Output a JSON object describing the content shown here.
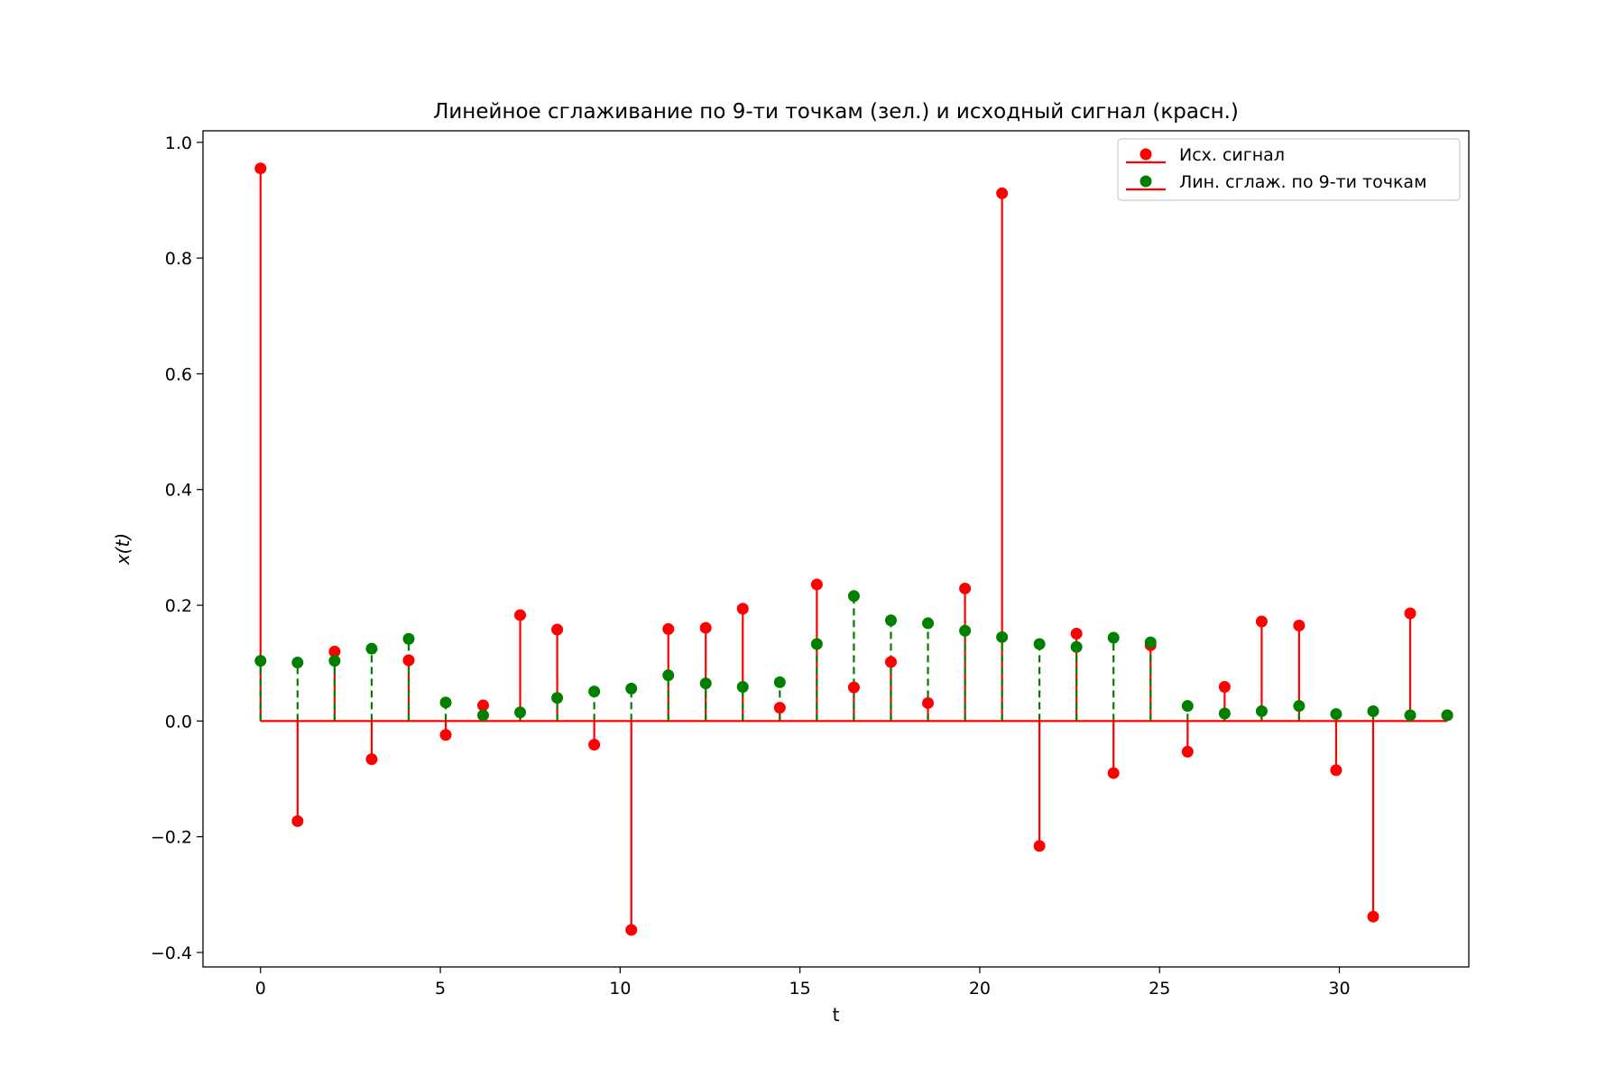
{
  "chart_data": {
    "type": "stem",
    "title": "Линейное сглаживание по 9-ти точкам (зел.) и исходный сигнал (красн.)",
    "xlabel": "t",
    "ylabel": "x(t)",
    "xlim": [
      -1.6,
      33.6
    ],
    "ylim": [
      -0.425,
      1.02
    ],
    "xticks": [
      0,
      5,
      10,
      15,
      20,
      25,
      30
    ],
    "yticks": [
      -0.4,
      -0.2,
      0.0,
      0.2,
      0.4,
      0.6,
      0.8,
      1.0
    ],
    "xtick_labels": [
      "0",
      "5",
      "10",
      "15",
      "20",
      "25",
      "30"
    ],
    "ytick_labels": [
      "−0.4",
      "−0.2",
      "0.0",
      "0.2",
      "0.4",
      "0.6",
      "0.8",
      "1.0"
    ],
    "grid": false,
    "legend_position": "top-right",
    "x": [
      0,
      1.03,
      2.06,
      3.09,
      4.12,
      5.15,
      6.19,
      7.22,
      8.25,
      9.28,
      10.31,
      11.34,
      12.38,
      13.41,
      14.44,
      15.47,
      16.5,
      17.53,
      18.56,
      19.59,
      20.62,
      21.66,
      22.69,
      23.72,
      24.75,
      25.78,
      26.81,
      27.84,
      28.88,
      29.91,
      30.94,
      31.97,
      33.0
    ],
    "series": [
      {
        "name": "Исх. сигнал",
        "color": "#ff0000",
        "line_style": "solid",
        "values": [
          0.955,
          -0.173,
          0.12,
          -0.066,
          0.105,
          -0.024,
          0.027,
          0.183,
          0.158,
          -0.041,
          -0.361,
          0.159,
          0.161,
          0.194,
          0.023,
          0.236,
          0.058,
          0.102,
          0.031,
          0.229,
          0.912,
          -0.216,
          0.151,
          -0.09,
          0.131,
          -0.053,
          0.059,
          0.172,
          0.165,
          -0.085,
          -0.338,
          0.186,
          0.01
        ]
      },
      {
        "name": "Лин. сглаж. по 9-ти точкам",
        "color": "#008000",
        "line_style": "dashed",
        "values": [
          0.104,
          0.101,
          0.104,
          0.125,
          0.142,
          0.032,
          0.01,
          0.015,
          0.04,
          0.051,
          0.056,
          0.079,
          0.065,
          0.059,
          0.067,
          0.133,
          0.216,
          0.174,
          0.169,
          0.156,
          0.145,
          0.133,
          0.128,
          0.144,
          0.136,
          0.026,
          0.013,
          0.017,
          0.026,
          0.012,
          0.017,
          0.01,
          0.01
        ]
      }
    ],
    "baseline": {
      "value": 0.0,
      "color": "#ff0000"
    }
  }
}
